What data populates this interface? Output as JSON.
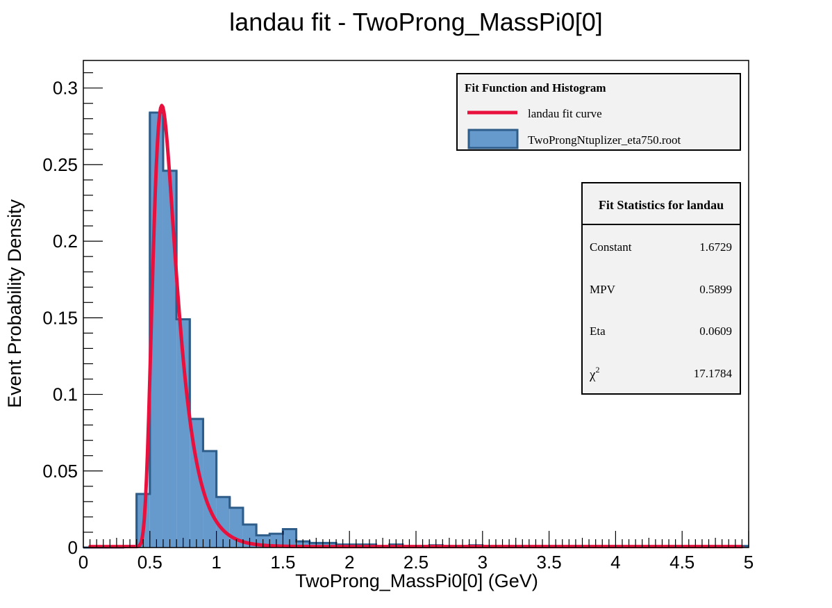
{
  "chart_data": {
    "type": "bar",
    "title": "landau fit - TwoProng_MassPi0[0]",
    "xlabel": "TwoProng_MassPi0[0] (GeV)",
    "ylabel": "Event Probability Density",
    "xlim": [
      0,
      5
    ],
    "ylim": [
      0,
      0.318
    ],
    "x_ticks": [
      "0",
      "0.5",
      "1",
      "1.5",
      "2",
      "2.5",
      "3",
      "3.5",
      "4",
      "4.5",
      "5"
    ],
    "y_ticks": [
      "0",
      "0.05",
      "0.1",
      "0.15",
      "0.2",
      "0.25",
      "0.3"
    ],
    "bin_width": 0.1,
    "series": [
      {
        "name": "TwoProngNtuplizer_eta750.root",
        "kind": "histogram",
        "color": "#6699cc",
        "edge_color": "#2f5d8a",
        "bin_centers": [
          0.05,
          0.15,
          0.25,
          0.35,
          0.45,
          0.55,
          0.65,
          0.75,
          0.85,
          0.95,
          1.05,
          1.15,
          1.25,
          1.35,
          1.45,
          1.55,
          1.65,
          1.75,
          1.85,
          1.95,
          2.05,
          2.15,
          2.25,
          2.35,
          2.45,
          2.55,
          2.65,
          2.75,
          2.85,
          2.95,
          3.05,
          3.15,
          3.25,
          3.35,
          3.45,
          3.55,
          3.65,
          3.75,
          3.85,
          3.95,
          4.05,
          4.15,
          4.25,
          4.35,
          4.45,
          4.55,
          4.65,
          4.75,
          4.85,
          4.95
        ],
        "values": [
          0,
          0,
          0,
          0.001,
          0.035,
          0.284,
          0.246,
          0.149,
          0.084,
          0.063,
          0.033,
          0.026,
          0.015,
          0.008,
          0.009,
          0.012,
          0.004,
          0.003,
          0.003,
          0.002,
          0.002,
          0.002,
          0.001,
          0.002,
          0.001,
          0.001,
          0.0015,
          0.001,
          0.001,
          0.0015,
          0.001,
          0.001,
          0.001,
          0.001,
          0.001,
          0.001,
          0.001,
          0.001,
          0.001,
          0.001,
          0.001,
          0.001,
          0.001,
          0.001,
          0.001,
          0.001,
          0.001,
          0.001,
          0.001,
          0.001
        ]
      },
      {
        "name": "landau fit curve",
        "kind": "line",
        "color": "#e8113d",
        "function": "landau",
        "parameters": {
          "constant": 1.6729,
          "mpv": 0.5899,
          "eta": 0.0609
        },
        "x_range": [
          0.05,
          4.95
        ]
      }
    ],
    "legend": {
      "title": "Fit Function and Histogram",
      "position": "top-right",
      "entries": [
        "landau fit curve",
        "TwoProngNtuplizer_eta750.root"
      ]
    },
    "stats_box": {
      "title": "Fit Statistics for landau",
      "position": "right",
      "rows": [
        {
          "label": "Constant",
          "value": "1.6729"
        },
        {
          "label": "MPV",
          "value": "0.5899"
        },
        {
          "label": "Eta",
          "value": "0.0609"
        },
        {
          "label": "χ",
          "superscript": "2",
          "value": "17.1784"
        }
      ]
    }
  }
}
